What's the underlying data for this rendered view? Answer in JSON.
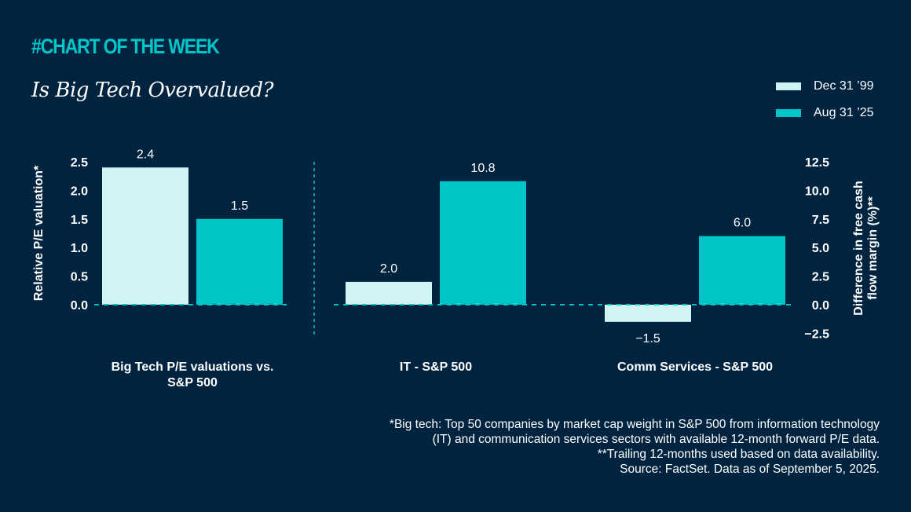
{
  "header": {
    "kicker": "#CHART OF THE WEEK",
    "title": "Is Big Tech Overvalued?"
  },
  "colors": {
    "background": "#00233f",
    "accent": "#00c5c8",
    "series_1999": "#cff4f3",
    "series_2025": "#00c5c8"
  },
  "chart_data": {
    "type": "bar",
    "title": "Is Big Tech Overvalued?",
    "legend": {
      "position": "top-right",
      "entries": [
        "Dec 31 ’99",
        "Aug 31 ’25"
      ]
    },
    "grid": false,
    "panels": [
      {
        "name": "left",
        "categories": [
          "Big Tech P/E valuations vs. S&P 500"
        ],
        "category_lines": [
          [
            "Big Tech P/E valuations vs.",
            "S&P 500"
          ]
        ],
        "ylabel": "Relative P/E valuation*",
        "yaxis_side": "left",
        "ylim": [
          0,
          2.5
        ],
        "yticks": [
          0.0,
          0.5,
          1.0,
          1.5,
          2.0,
          2.5
        ],
        "ytick_labels": [
          "0.0",
          "0.5",
          "1.0",
          "1.5",
          "2.0",
          "2.5"
        ],
        "series": [
          {
            "name": "Dec 31 ’99",
            "values": [
              2.4
            ],
            "labels": [
              "2.4"
            ]
          },
          {
            "name": "Aug 31 ’25",
            "values": [
              1.5
            ],
            "labels": [
              "1.5"
            ]
          }
        ]
      },
      {
        "name": "right",
        "categories": [
          "IT - S&P 500",
          "Comm Services - S&P 500"
        ],
        "category_lines": [
          [
            "IT - S&P 500"
          ],
          [
            "Comm Services - S&P 500"
          ]
        ],
        "ylabel_lines": [
          "Difference in free cash",
          "flow margin (%)**"
        ],
        "ylabel": "Difference in free cash flow margin (%)**",
        "yaxis_side": "right",
        "ylim": [
          -2.5,
          12.5
        ],
        "yticks": [
          -2.5,
          0.0,
          2.5,
          5.0,
          7.5,
          10.0,
          12.5
        ],
        "ytick_labels": [
          "−2.5",
          "0.0",
          "2.5",
          "5.0",
          "7.5",
          "10.0",
          "12.5"
        ],
        "series": [
          {
            "name": "Dec 31 ’99",
            "values": [
              2.0,
              -1.5
            ],
            "labels": [
              "2.0",
              "−1.5"
            ]
          },
          {
            "name": "Aug 31 ’25",
            "values": [
              10.8,
              6.0
            ],
            "labels": [
              "10.8",
              "6.0"
            ]
          }
        ]
      }
    ]
  },
  "footnotes": [
    "*Big tech: Top 50 companies by market cap weight in S&P 500 from information technology",
    "(IT) and communication services sectors with available 12-month forward P/E data.",
    "**Trailing 12-months used based on data availability.",
    "Source: FactSet. Data as of September 5, 2025."
  ]
}
